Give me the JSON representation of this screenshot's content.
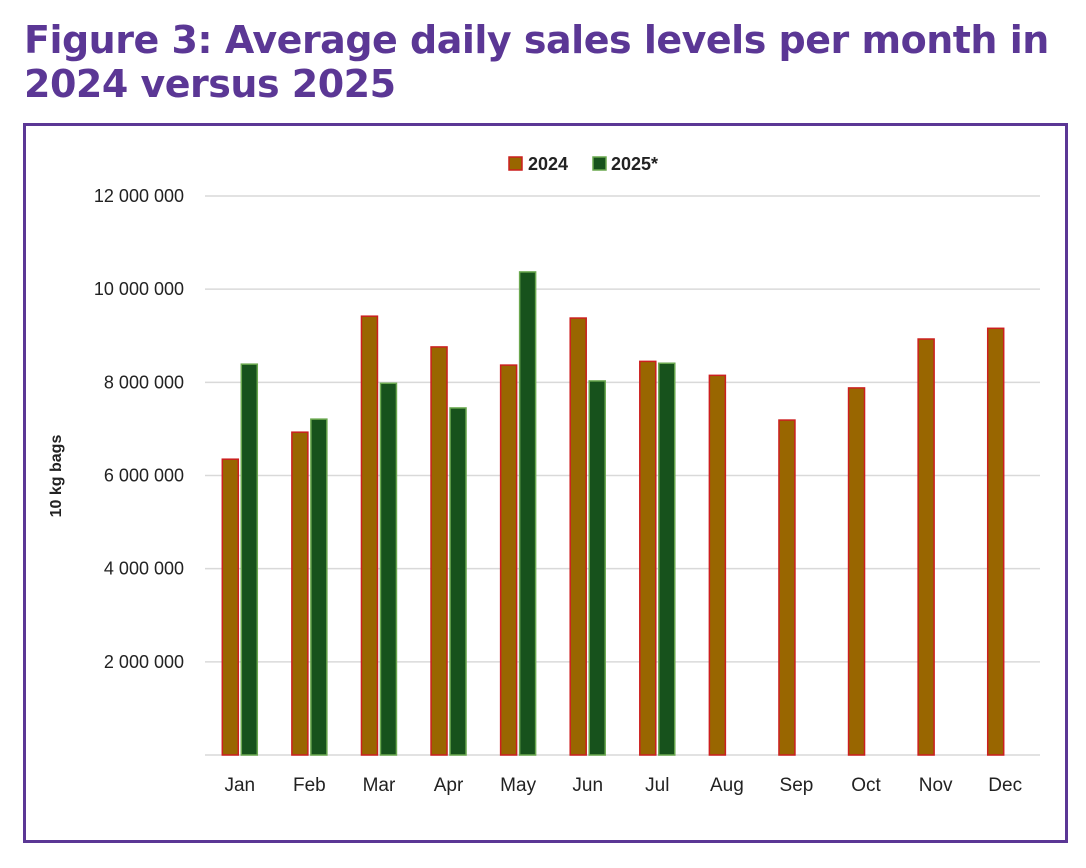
{
  "figure": {
    "title": "Figure 3: Average daily sales levels per month in 2024 versus 2025"
  },
  "colors": {
    "title": "#5b3795",
    "frame": "#5b3795",
    "series_2024_fill": "#996600",
    "series_2024_stroke": "#cc1f1f",
    "series_2025_fill": "#17521c",
    "series_2025_stroke": "#6aa84f",
    "grid": "#d9d9d9"
  },
  "chart_data": {
    "type": "bar",
    "title": "Figure 3: Average daily sales levels per month in 2024 versus 2025",
    "xlabel": "",
    "ylabel": "10 kg bags",
    "ylim": [
      0,
      12000000
    ],
    "yticks": [
      2000000,
      4000000,
      6000000,
      8000000,
      10000000,
      12000000
    ],
    "ytick_labels": [
      "2 000 000",
      "4 000 000",
      "6 000 000",
      "8 000 000",
      "10 000 000",
      "12 000 000"
    ],
    "grid": true,
    "legend_position": "top-center",
    "categories": [
      "Jan",
      "Feb",
      "Mar",
      "Apr",
      "May",
      "Jun",
      "Jul",
      "Aug",
      "Sep",
      "Oct",
      "Nov",
      "Dec"
    ],
    "series": [
      {
        "name": "2024",
        "values": [
          6350000,
          6930000,
          9420000,
          8760000,
          8370000,
          9380000,
          8450000,
          8150000,
          7190000,
          7880000,
          8930000,
          9160000
        ]
      },
      {
        "name": "2025*",
        "values": [
          8390000,
          7210000,
          7980000,
          7450000,
          10370000,
          8030000,
          8410000,
          null,
          null,
          null,
          null,
          null
        ]
      }
    ]
  }
}
